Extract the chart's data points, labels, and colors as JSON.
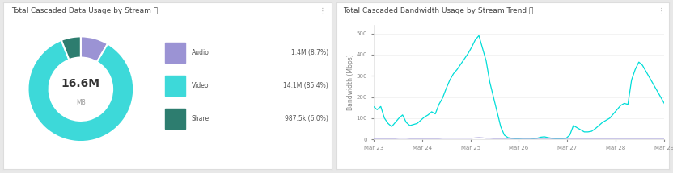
{
  "left_title": "Total Cascaded Data Usage by Stream ⓘ",
  "right_title": "Total Cascaded Bandwidth Usage by Stream Trend ⓘ",
  "donut": {
    "labels": [
      "Audio",
      "Video",
      "Share"
    ],
    "values": [
      1.4,
      14.1,
      0.987
    ],
    "percentages": [
      "8.7%",
      "85.4%",
      "6.0%"
    ],
    "display_values": [
      "1.4M",
      "14.1M",
      "987.5k"
    ],
    "colors": [
      "#9b93d4",
      "#3dd9d9",
      "#2d7d6f"
    ],
    "center_text": "16.6M",
    "center_subtext": "MB"
  },
  "line_chart": {
    "ylabel": "Bandwidth (Mbps)",
    "yticks": [
      0,
      100,
      200,
      300,
      400,
      500
    ],
    "xtick_labels": [
      "Mar 23",
      "Mar 24",
      "Mar 25",
      "Mar 26",
      "Mar 27",
      "Mar 28",
      "Mar 29"
    ],
    "colors": {
      "Video": "#00ddd8",
      "Audio": "#9b93d4",
      "Share": "#2d7d6f"
    },
    "video_data": [
      155,
      140,
      155,
      100,
      75,
      60,
      80,
      100,
      115,
      80,
      65,
      70,
      75,
      90,
      105,
      115,
      130,
      120,
      165,
      195,
      240,
      280,
      310,
      330,
      355,
      380,
      405,
      435,
      470,
      490,
      430,
      370,
      270,
      200,
      130,
      60,
      20,
      8,
      5,
      4,
      4,
      5,
      5,
      5,
      4,
      5,
      10,
      12,
      8,
      5,
      4,
      4,
      4,
      5,
      20,
      65,
      55,
      45,
      35,
      35,
      38,
      50,
      65,
      80,
      90,
      100,
      120,
      140,
      160,
      170,
      165,
      280,
      330,
      365,
      350,
      320,
      290,
      260,
      230,
      200,
      170
    ],
    "audio_data": [
      4,
      4,
      4,
      4,
      4,
      4,
      4,
      5,
      5,
      5,
      4,
      4,
      4,
      4,
      4,
      4,
      4,
      4,
      4,
      5,
      5,
      5,
      5,
      5,
      5,
      5,
      5,
      5,
      7,
      8,
      7,
      5,
      5,
      4,
      4,
      4,
      4,
      4,
      4,
      4,
      4,
      4,
      4,
      4,
      4,
      4,
      4,
      4,
      4,
      4,
      4,
      4,
      4,
      4,
      4,
      4,
      4,
      4,
      4,
      4,
      4,
      4,
      4,
      4,
      4,
      4,
      4,
      4,
      4,
      4,
      4,
      4,
      4,
      4,
      4,
      4,
      4,
      4,
      4,
      4,
      4
    ],
    "share_data": [
      2,
      2,
      2,
      2,
      2,
      2,
      2,
      2,
      2,
      2,
      2,
      2,
      2,
      2,
      2,
      2,
      2,
      2,
      2,
      2,
      2,
      2,
      2,
      2,
      2,
      2,
      2,
      2,
      2,
      2,
      2,
      2,
      2,
      2,
      2,
      2,
      2,
      2,
      2,
      2,
      2,
      2,
      2,
      2,
      2,
      2,
      2,
      2,
      2,
      2,
      2,
      2,
      2,
      2,
      2,
      2,
      2,
      2,
      2,
      2,
      2,
      2,
      2,
      2,
      2,
      2,
      2,
      2,
      2,
      2,
      2,
      2,
      2,
      2,
      2,
      2,
      2,
      2,
      2,
      2,
      2
    ]
  },
  "bg_color": "#e8e8e8",
  "panel_bg": "#ffffff",
  "text_color": "#555555",
  "title_fontsize": 6.5,
  "label_fontsize": 5.5,
  "tick_fontsize": 5.0
}
